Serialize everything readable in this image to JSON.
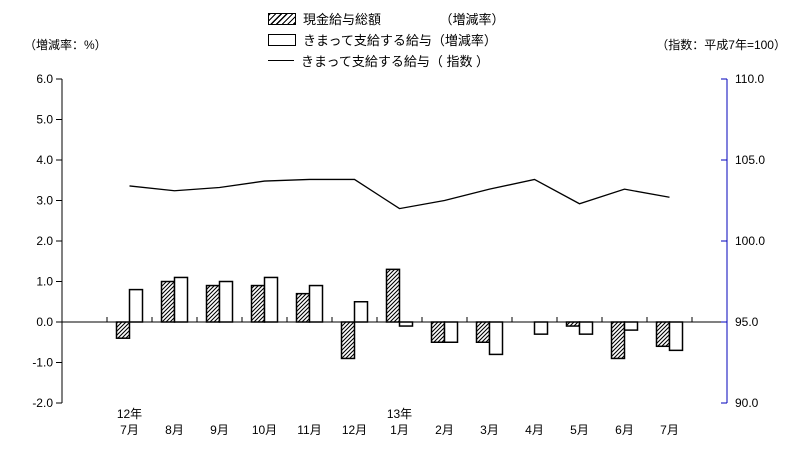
{
  "legend": [
    {
      "label": "現金給与総額　　　　　（増減率）",
      "swatch": "hatched-bar"
    },
    {
      "label": "きまって支給する給与（増減率）",
      "swatch": "white-bar"
    },
    {
      "label": "きまって支給する給与（ 指数 ）",
      "swatch": "line"
    }
  ],
  "chart_data": {
    "type": "bar+line",
    "title": "",
    "categories": [
      "7月",
      "8月",
      "9月",
      "10月",
      "11月",
      "12月",
      "1月",
      "2月",
      "3月",
      "4月",
      "5月",
      "6月",
      "7月"
    ],
    "category_years": [
      {
        "index": 0,
        "label": "12年"
      },
      {
        "index": 6,
        "label": "13年"
      }
    ],
    "series": [
      {
        "name": "現金給与総額（増減率）",
        "type": "bar",
        "style": "hatched",
        "axis": "left",
        "values": [
          -0.4,
          1.0,
          0.9,
          0.9,
          0.7,
          -0.9,
          1.3,
          -0.5,
          -0.5,
          0.0,
          -0.1,
          -0.9,
          -0.6
        ]
      },
      {
        "name": "きまって支給する給与（増減率）",
        "type": "bar",
        "style": "white",
        "axis": "left",
        "values": [
          0.8,
          1.1,
          1.0,
          1.1,
          0.9,
          0.5,
          -0.1,
          -0.5,
          -0.8,
          -0.3,
          -0.3,
          -0.2,
          -0.7
        ]
      },
      {
        "name": "きまって支給する給与（指数）",
        "type": "line",
        "axis": "right",
        "values": [
          103.4,
          103.1,
          103.3,
          103.7,
          103.8,
          103.8,
          102.0,
          102.5,
          103.2,
          103.8,
          102.3,
          103.2,
          102.7
        ]
      }
    ],
    "left_axis": {
      "caption": "（増減率：%）",
      "min": -2.0,
      "max": 6.0,
      "tick_step": 1.0,
      "ticks": [
        6.0,
        5.0,
        4.0,
        3.0,
        2.0,
        1.0,
        0.0,
        -1.0,
        -2.0
      ],
      "color": "#000000"
    },
    "right_axis": {
      "caption": "（指数：平成7年=100）",
      "min": 90.0,
      "max": 110.0,
      "tick_step": 5.0,
      "ticks": [
        110.0,
        105.0,
        100.0,
        95.0,
        90.0
      ],
      "color": "#0000bb"
    },
    "grid": false,
    "legend_position": "top-center"
  }
}
